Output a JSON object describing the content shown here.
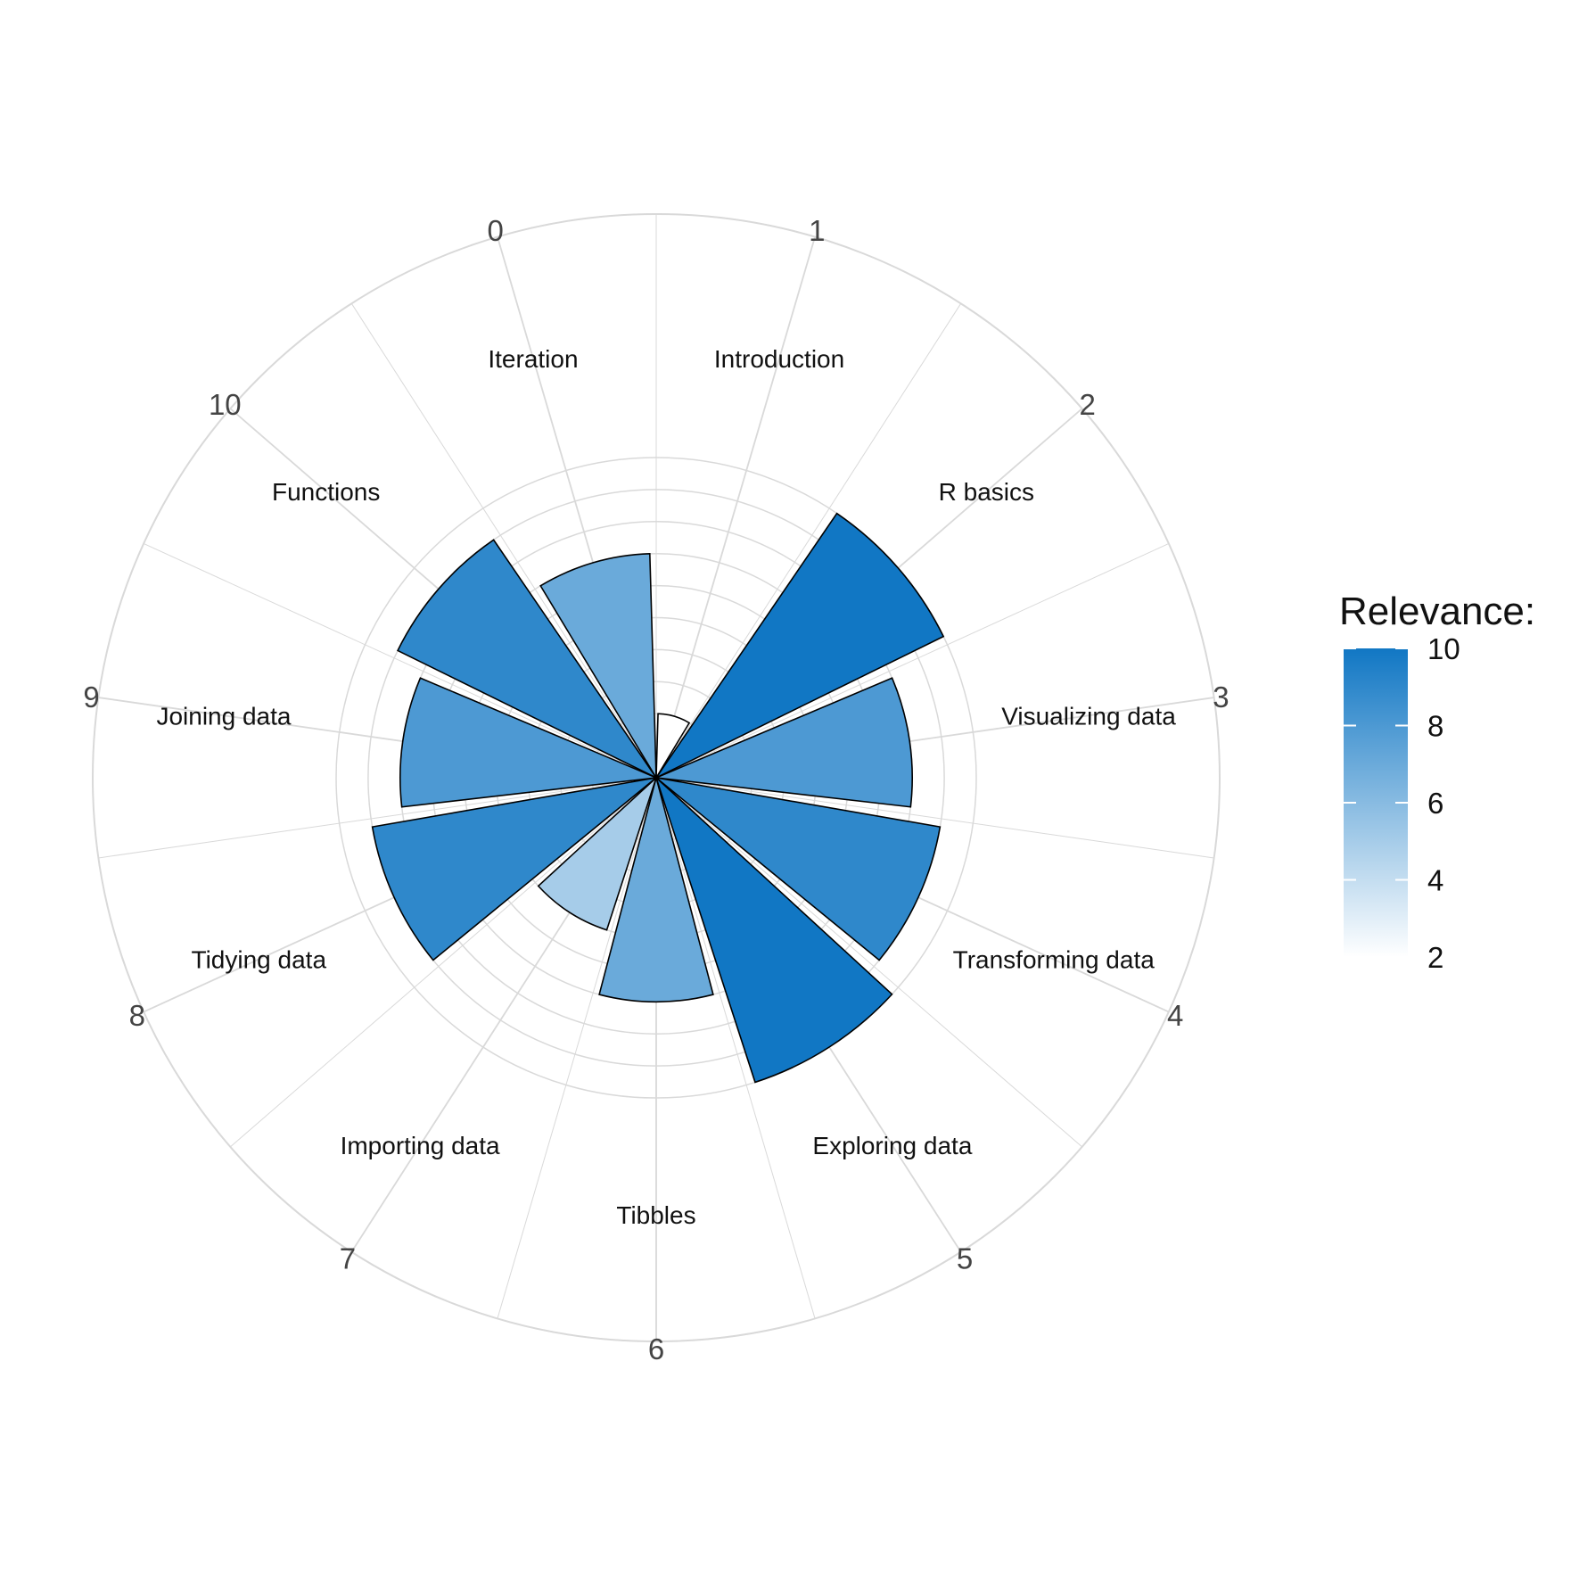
{
  "chart_data": {
    "type": "bar",
    "coord": "polar",
    "xlabel": "",
    "ylabel": "",
    "categories": [
      "Introduction",
      "R basics",
      "Visualizing data",
      "Transforming data",
      "Exploring data",
      "Tibbles",
      "Importing data",
      "Tidying data",
      "Joining data",
      "Functions",
      "Iteration"
    ],
    "values": [
      2,
      10,
      8,
      9,
      10,
      7,
      5,
      9,
      8,
      9,
      7
    ],
    "fill_by": "Relevance",
    "x_ticks": [
      "0",
      "1",
      "2",
      "3",
      "4",
      "5",
      "6",
      "7",
      "8",
      "9",
      "10"
    ],
    "grid": true,
    "legend": {
      "title": "Relevance:",
      "position": "right",
      "ticks": [
        "2",
        "4",
        "6",
        "8",
        "10"
      ],
      "range": [
        2,
        10
      ],
      "color_low": "#ffffff",
      "color_high": "#1177c4"
    },
    "colors": {
      "bar_outline": "#000000",
      "grid": "#d9d9d9",
      "background": "#ffffff"
    }
  }
}
